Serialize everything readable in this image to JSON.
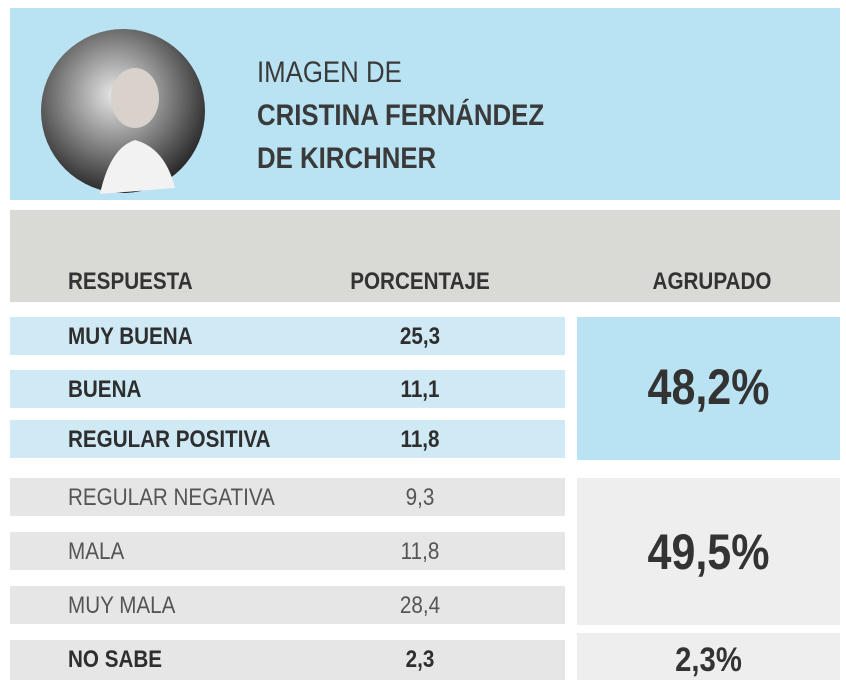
{
  "header": {
    "title_lines": [
      "IMAGEN DE",
      "CRISTINA FERNÁNDEZ",
      "DE KIRCHNER"
    ]
  },
  "table": {
    "columns": [
      "RESPUESTA",
      "PORCENTAJE",
      "AGRUPADO"
    ],
    "rows": [
      [
        "MUY BUENA",
        "25,3"
      ],
      [
        "BUENA",
        "11,1"
      ],
      [
        "REGULAR POSITIVA",
        "11,8"
      ],
      [
        "REGULAR NEGATIVA",
        "9,3"
      ],
      [
        "MALA",
        "11,8"
      ],
      [
        "MUY MALA",
        "28,4"
      ],
      [
        "NO SABE",
        "2,3"
      ]
    ],
    "groups": [
      "48,2%",
      "49,5%",
      "2,3%"
    ]
  }
}
